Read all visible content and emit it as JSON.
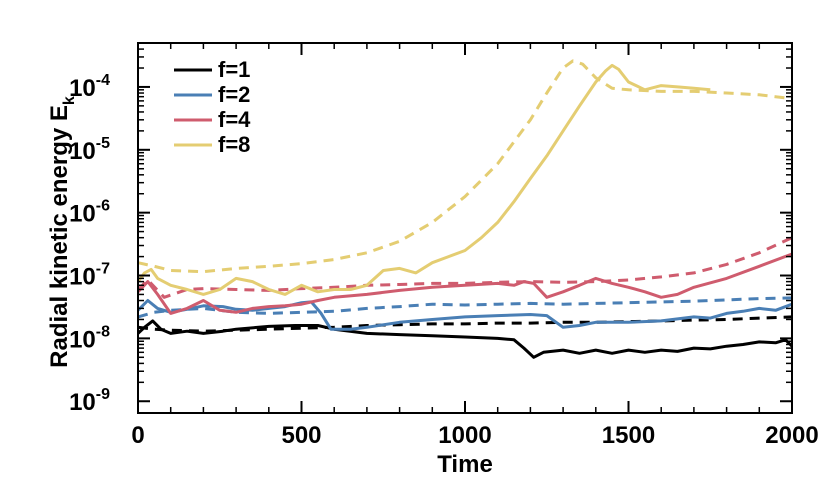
{
  "chart_data": {
    "type": "line",
    "xlabel": "Time",
    "ylabel": "Radial kinetic energy E",
    "ylabel_subscript": "k",
    "xlim": [
      0,
      2000
    ],
    "ylim": [
      6.5e-10,
      0.0005
    ],
    "yscale": "log",
    "grid": false,
    "legend_position": "top-left",
    "x_ticks": [
      {
        "value": 0,
        "label": "0"
      },
      {
        "value": 500,
        "label": "500"
      },
      {
        "value": 1000,
        "label": "1000"
      },
      {
        "value": 1500,
        "label": "1500"
      },
      {
        "value": 2000,
        "label": "2000"
      }
    ],
    "y_ticks": [
      {
        "value": 1e-09,
        "base": "10",
        "exp": "-9"
      },
      {
        "value": 1e-08,
        "base": "10",
        "exp": "-8"
      },
      {
        "value": 1e-07,
        "base": "10",
        "exp": "-7"
      },
      {
        "value": 1e-06,
        "base": "10",
        "exp": "-6"
      },
      {
        "value": 1e-05,
        "base": "10",
        "exp": "-5"
      },
      {
        "value": 0.0001,
        "base": "10",
        "exp": "-4"
      }
    ],
    "series": [
      {
        "name": "f=1",
        "style": "solid",
        "color": "#000000",
        "points": [
          [
            0,
            1.2e-08
          ],
          [
            20,
            1.5e-08
          ],
          [
            45,
            1.9e-08
          ],
          [
            70,
            1.4e-08
          ],
          [
            100,
            1.2e-08
          ],
          [
            150,
            1.3e-08
          ],
          [
            200,
            1.2e-08
          ],
          [
            260,
            1.3e-08
          ],
          [
            300,
            1.4e-08
          ],
          [
            400,
            1.55e-08
          ],
          [
            480,
            1.6e-08
          ],
          [
            550,
            1.6e-08
          ],
          [
            600,
            1.4e-08
          ],
          [
            700,
            1.2e-08
          ],
          [
            800,
            1.15e-08
          ],
          [
            900,
            1.1e-08
          ],
          [
            1000,
            1.05e-08
          ],
          [
            1100,
            1e-08
          ],
          [
            1150,
            9.5e-09
          ],
          [
            1180,
            7e-09
          ],
          [
            1210,
            5e-09
          ],
          [
            1240,
            6e-09
          ],
          [
            1300,
            6.5e-09
          ],
          [
            1350,
            5.8e-09
          ],
          [
            1400,
            6.5e-09
          ],
          [
            1450,
            5.8e-09
          ],
          [
            1500,
            6.5e-09
          ],
          [
            1550,
            6e-09
          ],
          [
            1600,
            6.5e-09
          ],
          [
            1650,
            6.2e-09
          ],
          [
            1700,
            7e-09
          ],
          [
            1750,
            6.8e-09
          ],
          [
            1800,
            7.5e-09
          ],
          [
            1850,
            8e-09
          ],
          [
            1900,
            8.8e-09
          ],
          [
            1950,
            8.5e-09
          ],
          [
            1980,
            9.5e-09
          ],
          [
            2000,
            7.5e-09
          ]
        ]
      },
      {
        "name": "",
        "style": "dashed",
        "color": "#000000",
        "points": [
          [
            0,
            1.5e-08
          ],
          [
            50,
            1.4e-08
          ],
          [
            100,
            1.35e-08
          ],
          [
            200,
            1.3e-08
          ],
          [
            300,
            1.35e-08
          ],
          [
            400,
            1.4e-08
          ],
          [
            500,
            1.45e-08
          ],
          [
            600,
            1.5e-08
          ],
          [
            700,
            1.6e-08
          ],
          [
            800,
            1.65e-08
          ],
          [
            900,
            1.7e-08
          ],
          [
            1000,
            1.7e-08
          ],
          [
            1100,
            1.75e-08
          ],
          [
            1200,
            1.75e-08
          ],
          [
            1300,
            1.8e-08
          ],
          [
            1400,
            1.8e-08
          ],
          [
            1500,
            1.85e-08
          ],
          [
            1600,
            1.9e-08
          ],
          [
            1700,
            1.95e-08
          ],
          [
            1800,
            2e-08
          ],
          [
            1900,
            2.1e-08
          ],
          [
            2000,
            2.2e-08
          ]
        ]
      },
      {
        "name": "f=2",
        "style": "solid",
        "color": "#4a7fb5",
        "points": [
          [
            0,
            2.8e-08
          ],
          [
            30,
            4e-08
          ],
          [
            60,
            3e-08
          ],
          [
            100,
            2.6e-08
          ],
          [
            150,
            2.9e-08
          ],
          [
            200,
            3.3e-08
          ],
          [
            260,
            3.2e-08
          ],
          [
            300,
            2.9e-08
          ],
          [
            350,
            2.8e-08
          ],
          [
            400,
            3e-08
          ],
          [
            450,
            3.2e-08
          ],
          [
            500,
            3.7e-08
          ],
          [
            530,
            3.8e-08
          ],
          [
            560,
            2.5e-08
          ],
          [
            590,
            1.4e-08
          ],
          [
            650,
            1.4e-08
          ],
          [
            700,
            1.5e-08
          ],
          [
            800,
            1.8e-08
          ],
          [
            900,
            2e-08
          ],
          [
            1000,
            2.2e-08
          ],
          [
            1100,
            2.3e-08
          ],
          [
            1200,
            2.4e-08
          ],
          [
            1250,
            2.3e-08
          ],
          [
            1300,
            1.5e-08
          ],
          [
            1350,
            1.6e-08
          ],
          [
            1400,
            1.8e-08
          ],
          [
            1500,
            1.8e-08
          ],
          [
            1600,
            1.9e-08
          ],
          [
            1700,
            2.2e-08
          ],
          [
            1750,
            2.1e-08
          ],
          [
            1800,
            2.5e-08
          ],
          [
            1850,
            2.7e-08
          ],
          [
            1900,
            3e-08
          ],
          [
            1950,
            2.8e-08
          ],
          [
            2000,
            3.5e-08
          ]
        ]
      },
      {
        "name": "",
        "style": "dashed",
        "color": "#4a7fb5",
        "points": [
          [
            0,
            2.2e-08
          ],
          [
            50,
            2.6e-08
          ],
          [
            100,
            2.8e-08
          ],
          [
            200,
            3e-08
          ],
          [
            300,
            2.6e-08
          ],
          [
            400,
            2.5e-08
          ],
          [
            500,
            2.6e-08
          ],
          [
            600,
            2.7e-08
          ],
          [
            700,
            3e-08
          ],
          [
            800,
            3.2e-08
          ],
          [
            900,
            3.5e-08
          ],
          [
            1000,
            3.4e-08
          ],
          [
            1100,
            3.5e-08
          ],
          [
            1200,
            3.6e-08
          ],
          [
            1300,
            3.5e-08
          ],
          [
            1400,
            3.6e-08
          ],
          [
            1500,
            3.7e-08
          ],
          [
            1600,
            3.8e-08
          ],
          [
            1700,
            3.9e-08
          ],
          [
            1800,
            4.1e-08
          ],
          [
            1900,
            4.3e-08
          ],
          [
            2000,
            4.4e-08
          ]
        ]
      },
      {
        "name": "f=4",
        "style": "solid",
        "color": "#cf5c6e",
        "points": [
          [
            0,
            5.5e-08
          ],
          [
            30,
            8e-08
          ],
          [
            60,
            5e-08
          ],
          [
            100,
            2.5e-08
          ],
          [
            150,
            3e-08
          ],
          [
            200,
            4e-08
          ],
          [
            250,
            2.8e-08
          ],
          [
            300,
            2.6e-08
          ],
          [
            350,
            3e-08
          ],
          [
            400,
            3.2e-08
          ],
          [
            450,
            3.3e-08
          ],
          [
            500,
            3.5e-08
          ],
          [
            550,
            4e-08
          ],
          [
            600,
            4.5e-08
          ],
          [
            700,
            5e-08
          ],
          [
            800,
            5.8e-08
          ],
          [
            900,
            6.5e-08
          ],
          [
            1000,
            7e-08
          ],
          [
            1100,
            7.5e-08
          ],
          [
            1150,
            7e-08
          ],
          [
            1180,
            8e-08
          ],
          [
            1210,
            7.5e-08
          ],
          [
            1250,
            4.5e-08
          ],
          [
            1300,
            5.5e-08
          ],
          [
            1350,
            7e-08
          ],
          [
            1400,
            9e-08
          ],
          [
            1450,
            7.5e-08
          ],
          [
            1500,
            6.5e-08
          ],
          [
            1550,
            5.5e-08
          ],
          [
            1600,
            4.5e-08
          ],
          [
            1650,
            5e-08
          ],
          [
            1700,
            6.5e-08
          ],
          [
            1800,
            9e-08
          ],
          [
            1900,
            1.4e-07
          ],
          [
            2000,
            2.2e-07
          ]
        ]
      },
      {
        "name": "",
        "style": "dashed",
        "color": "#cf5c6e",
        "points": [
          [
            0,
            6e-08
          ],
          [
            30,
            8.5e-08
          ],
          [
            80,
            4.5e-08
          ],
          [
            150,
            6e-08
          ],
          [
            200,
            6.2e-08
          ],
          [
            300,
            6e-08
          ],
          [
            400,
            5.8e-08
          ],
          [
            500,
            6.2e-08
          ],
          [
            600,
            6.5e-08
          ],
          [
            700,
            7e-08
          ],
          [
            800,
            7.2e-08
          ],
          [
            900,
            7.5e-08
          ],
          [
            1000,
            7.5e-08
          ],
          [
            1100,
            7.8e-08
          ],
          [
            1200,
            8e-08
          ],
          [
            1300,
            7.8e-08
          ],
          [
            1400,
            8e-08
          ],
          [
            1500,
            8.5e-08
          ],
          [
            1600,
            9.5e-08
          ],
          [
            1700,
            1.1e-07
          ],
          [
            1800,
            1.5e-07
          ],
          [
            1900,
            2.3e-07
          ],
          [
            2000,
            4e-07
          ]
        ]
      },
      {
        "name": "f=8",
        "style": "solid",
        "color": "#e4cd72",
        "points": [
          [
            0,
            8e-08
          ],
          [
            20,
            1.1e-07
          ],
          [
            40,
            1.25e-07
          ],
          [
            60,
            9e-08
          ],
          [
            100,
            7e-08
          ],
          [
            150,
            6e-08
          ],
          [
            200,
            5e-08
          ],
          [
            250,
            6e-08
          ],
          [
            300,
            9e-08
          ],
          [
            350,
            8e-08
          ],
          [
            400,
            6e-08
          ],
          [
            450,
            5e-08
          ],
          [
            500,
            7e-08
          ],
          [
            550,
            5.5e-08
          ],
          [
            600,
            6e-08
          ],
          [
            650,
            6e-08
          ],
          [
            700,
            7e-08
          ],
          [
            750,
            1.2e-07
          ],
          [
            800,
            1.3e-07
          ],
          [
            850,
            1.1e-07
          ],
          [
            900,
            1.6e-07
          ],
          [
            950,
            2e-07
          ],
          [
            1000,
            2.5e-07
          ],
          [
            1050,
            4e-07
          ],
          [
            1100,
            7e-07
          ],
          [
            1150,
            1.5e-06
          ],
          [
            1200,
            3.5e-06
          ],
          [
            1250,
            8e-06
          ],
          [
            1300,
            2e-05
          ],
          [
            1350,
            5e-05
          ],
          [
            1400,
            0.00012
          ],
          [
            1430,
            0.00018
          ],
          [
            1450,
            0.00022
          ],
          [
            1470,
            0.00019
          ],
          [
            1500,
            0.00012
          ],
          [
            1550,
            9e-05
          ],
          [
            1600,
            0.000105
          ],
          [
            1650,
            0.0001
          ],
          [
            1700,
            9.5e-05
          ],
          [
            1750,
            9e-05
          ]
        ]
      },
      {
        "name": "",
        "style": "dashed",
        "color": "#e4cd72",
        "points": [
          [
            0,
            1.6e-07
          ],
          [
            50,
            1.4e-07
          ],
          [
            100,
            1.2e-07
          ],
          [
            200,
            1.15e-07
          ],
          [
            300,
            1.3e-07
          ],
          [
            400,
            1.4e-07
          ],
          [
            500,
            1.55e-07
          ],
          [
            600,
            1.8e-07
          ],
          [
            700,
            2.3e-07
          ],
          [
            800,
            3.5e-07
          ],
          [
            900,
            7e-07
          ],
          [
            1000,
            1.8e-06
          ],
          [
            1100,
            6e-06
          ],
          [
            1200,
            3e-05
          ],
          [
            1250,
            8e-05
          ],
          [
            1300,
            0.0002
          ],
          [
            1330,
            0.00026
          ],
          [
            1360,
            0.00023
          ],
          [
            1400,
            0.00014
          ],
          [
            1450,
            9.5e-05
          ],
          [
            1500,
            9e-05
          ],
          [
            1600,
            8.5e-05
          ],
          [
            1700,
            8.5e-05
          ],
          [
            1800,
            8e-05
          ],
          [
            1900,
            7.5e-05
          ],
          [
            2000,
            6.5e-05
          ]
        ]
      }
    ]
  }
}
